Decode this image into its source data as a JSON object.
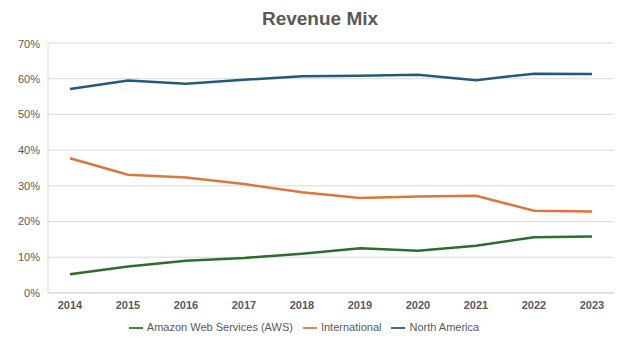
{
  "chart_data": {
    "type": "line",
    "title": "Revenue Mix",
    "categories": [
      "2014",
      "2015",
      "2016",
      "2017",
      "2018",
      "2019",
      "2020",
      "2021",
      "2022",
      "2023"
    ],
    "series": [
      {
        "name": "North America",
        "color": "#215a7a",
        "values": [
          57.1,
          59.5,
          58.6,
          59.7,
          60.7,
          60.8,
          61.1,
          59.6,
          61.4,
          61.3
        ]
      },
      {
        "name": "International",
        "color": "#d9773f",
        "values": [
          37.7,
          33.1,
          32.3,
          30.5,
          28.2,
          26.6,
          27.0,
          27.2,
          23.0,
          22.8
        ]
      },
      {
        "name": "Amazon Web Services (AWS)",
        "color": "#2f6d2f",
        "values": [
          5.2,
          7.4,
          9.0,
          9.8,
          11.0,
          12.5,
          11.8,
          13.2,
          15.6,
          15.8
        ]
      }
    ],
    "ylim": [
      0,
      70
    ],
    "yticks": [
      {
        "value": 0,
        "label": "0%"
      },
      {
        "value": 10,
        "label": "10%"
      },
      {
        "value": 20,
        "label": "20%"
      },
      {
        "value": 30,
        "label": "30%"
      },
      {
        "value": 40,
        "label": "40%"
      },
      {
        "value": 50,
        "label": "50%"
      },
      {
        "value": 60,
        "label": "60%"
      },
      {
        "value": 70,
        "label": "70%"
      }
    ],
    "grid": true,
    "legend": "bottom"
  }
}
